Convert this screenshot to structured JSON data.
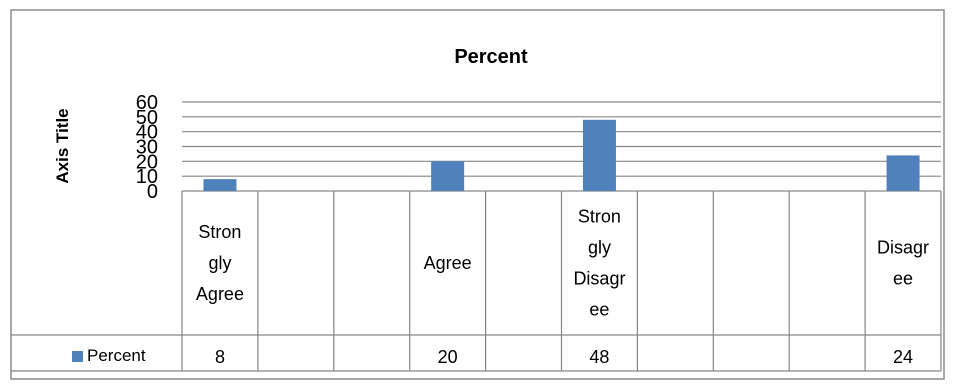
{
  "chart_data": {
    "type": "bar",
    "title": "Percent",
    "ylabel": "Axis Title",
    "ylim": [
      0,
      60
    ],
    "yticks": [
      "0",
      "10",
      "20",
      "30",
      "40",
      "50",
      "60"
    ],
    "grid": true,
    "categories": [
      "Strongly Agree",
      "",
      "",
      "Agree",
      "",
      "Strongly Disagree",
      "",
      "",
      "",
      "Disagree"
    ],
    "category_lines": [
      [
        "Stron",
        "gly",
        "Agree"
      ],
      [],
      [],
      [
        "Agree"
      ],
      [],
      [
        "Stron",
        "gly",
        "Disagr",
        "ee"
      ],
      [],
      [],
      [],
      [
        "Disagr",
        "ee"
      ]
    ],
    "series": [
      {
        "name": "Percent",
        "values": [
          8,
          null,
          null,
          20,
          null,
          48,
          null,
          null,
          null,
          24
        ],
        "value_labels": [
          "8",
          "",
          "",
          "20",
          "",
          "48",
          "",
          "",
          "",
          "24"
        ],
        "color": "#4f81bd"
      }
    ]
  }
}
